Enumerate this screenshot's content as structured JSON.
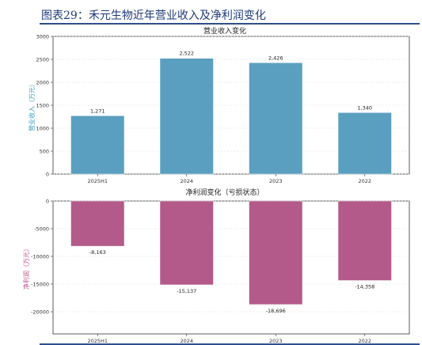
{
  "figure_title": "图表29：禾元生物近年营业收入及净利润变化",
  "chart_data": [
    {
      "type": "bar",
      "title": "营业收入变化",
      "ylabel": "营业收入（万元）",
      "categories": [
        "2025H1",
        "2024",
        "2023",
        "2022"
      ],
      "values": [
        1271,
        2522,
        2426,
        1340
      ],
      "value_labels": [
        "1,271",
        "2,522",
        "2,426",
        "1,340"
      ],
      "ylim": [
        0,
        3000
      ],
      "yticks": [
        0,
        500,
        1000,
        1500,
        2000,
        2500,
        3000
      ],
      "color": "#5a9fc0"
    },
    {
      "type": "bar",
      "title": "净利润变化（亏损状态）",
      "ylabel": "净利润（万元）",
      "categories": [
        "2025H1",
        "2024",
        "2023",
        "2022"
      ],
      "values": [
        -8163,
        -15137,
        -18696,
        -14358
      ],
      "value_labels": [
        "-8,163",
        "-15,137",
        "-18,696",
        "-14,358"
      ],
      "ylim": [
        -24000,
        0
      ],
      "yticks": [
        0,
        -5000,
        -10000,
        -15000,
        -20000
      ],
      "color": "#b35a8a"
    }
  ]
}
